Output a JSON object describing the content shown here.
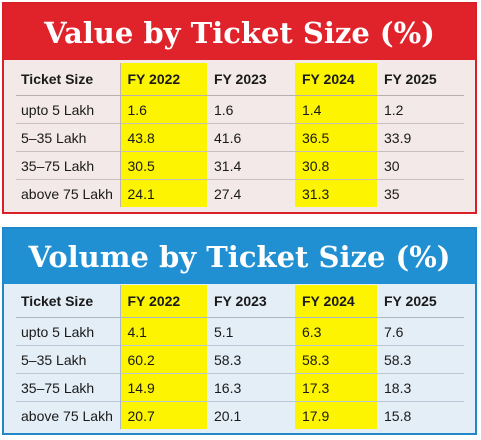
{
  "chart_data": [
    {
      "type": "table",
      "title": "Value by Ticket Size (%)",
      "columns": [
        "Ticket Size",
        "FY 2022",
        "FY 2023",
        "FY 2024",
        "FY 2025"
      ],
      "highlighted_columns": [
        "FY 2022",
        "FY 2024"
      ],
      "rows": [
        [
          "upto 5 Lakh",
          "1.6",
          "1.6",
          "1.4",
          "1.2"
        ],
        [
          "5–35 Lakh",
          "43.8",
          "41.6",
          "36.5",
          "33.9"
        ],
        [
          "35–75 Lakh",
          "30.5",
          "31.4",
          "30.8",
          "30"
        ],
        [
          "above 75 Lakh",
          "24.1",
          "27.4",
          "31.3",
          "35"
        ]
      ],
      "banner_color": "#e0232b",
      "highlight_color": "#fcf400"
    },
    {
      "type": "table",
      "title": "Volume by Ticket Size (%)",
      "columns": [
        "Ticket Size",
        "FY 2022",
        "FY 2023",
        "FY 2024",
        "FY 2025"
      ],
      "highlighted_columns": [
        "FY 2022",
        "FY 2024"
      ],
      "rows": [
        [
          "upto 5 Lakh",
          "4.1",
          "5.1",
          "6.3",
          "7.6"
        ],
        [
          "5–35 Lakh",
          "60.2",
          "58.3",
          "58.3",
          "58.3"
        ],
        [
          "35–75 Lakh",
          "14.9",
          "16.3",
          "17.3",
          "18.3"
        ],
        [
          "above 75 Lakh",
          "20.7",
          "20.1",
          "17.9",
          "15.8"
        ]
      ],
      "banner_color": "#2090d3",
      "highlight_color": "#fcf400"
    }
  ]
}
